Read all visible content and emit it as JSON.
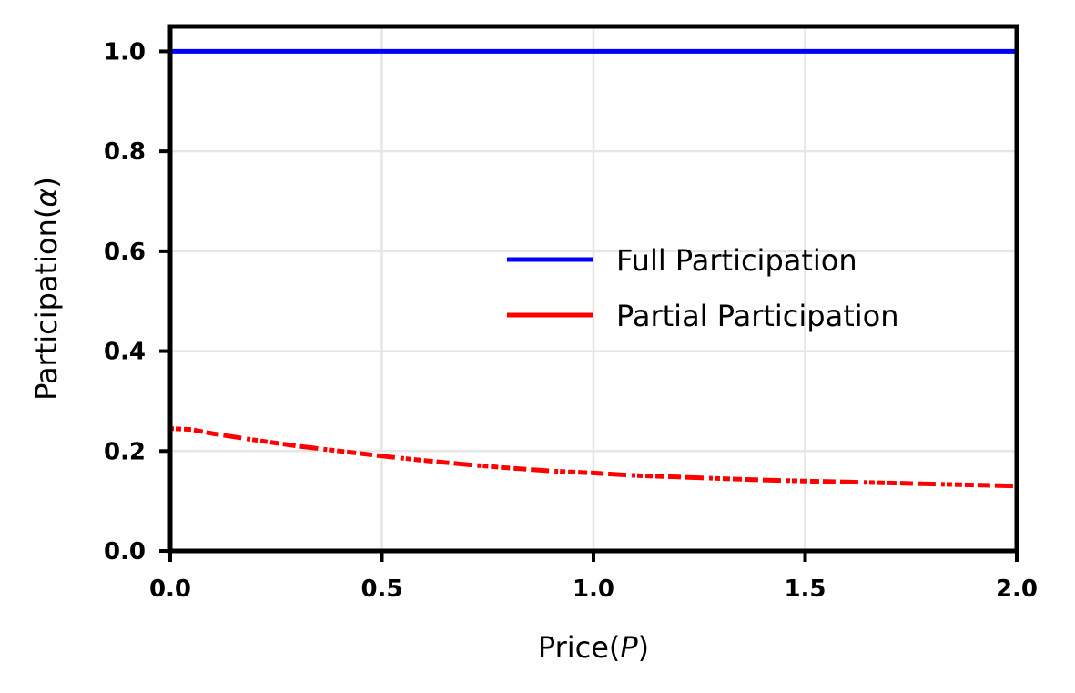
{
  "chart_data": {
    "type": "line",
    "xlabel_text": "Price(",
    "xlabel_var": "P",
    "xlabel_close": ")",
    "ylabel_text": "Participation(",
    "ylabel_var": "α",
    "ylabel_close": ")",
    "xlim": [
      0,
      2
    ],
    "ylim": [
      0,
      1.05
    ],
    "xticks": [
      0.0,
      0.5,
      1.0,
      1.5,
      2.0
    ],
    "xtick_labels": [
      "0.0",
      "0.5",
      "1.0",
      "1.5",
      "2.0"
    ],
    "yticks": [
      0.0,
      0.2,
      0.4,
      0.6,
      0.8,
      1.0
    ],
    "ytick_labels": [
      "0.0",
      "0.2",
      "0.4",
      "0.6",
      "0.8",
      "1.0"
    ],
    "grid": true,
    "legend_position": "center-right",
    "series": [
      {
        "name": "Full Participation",
        "color": "#0000ff",
        "style": "solid",
        "x": [
          0.0,
          2.0
        ],
        "y": [
          1.0,
          1.0
        ]
      },
      {
        "name": "Partial Participation",
        "color": "#ff0000",
        "style": "dashed",
        "x": [
          0.0,
          0.05,
          0.1,
          0.2,
          0.3,
          0.4,
          0.5,
          0.6,
          0.7,
          0.8,
          0.9,
          1.0,
          1.1,
          1.2,
          1.3,
          1.4,
          1.5,
          1.6,
          1.7,
          1.8,
          1.9,
          2.0
        ],
        "y": [
          0.245,
          0.243,
          0.235,
          0.222,
          0.21,
          0.2,
          0.19,
          0.181,
          0.173,
          0.166,
          0.16,
          0.156,
          0.151,
          0.148,
          0.145,
          0.142,
          0.14,
          0.138,
          0.136,
          0.134,
          0.132,
          0.13
        ]
      }
    ]
  }
}
